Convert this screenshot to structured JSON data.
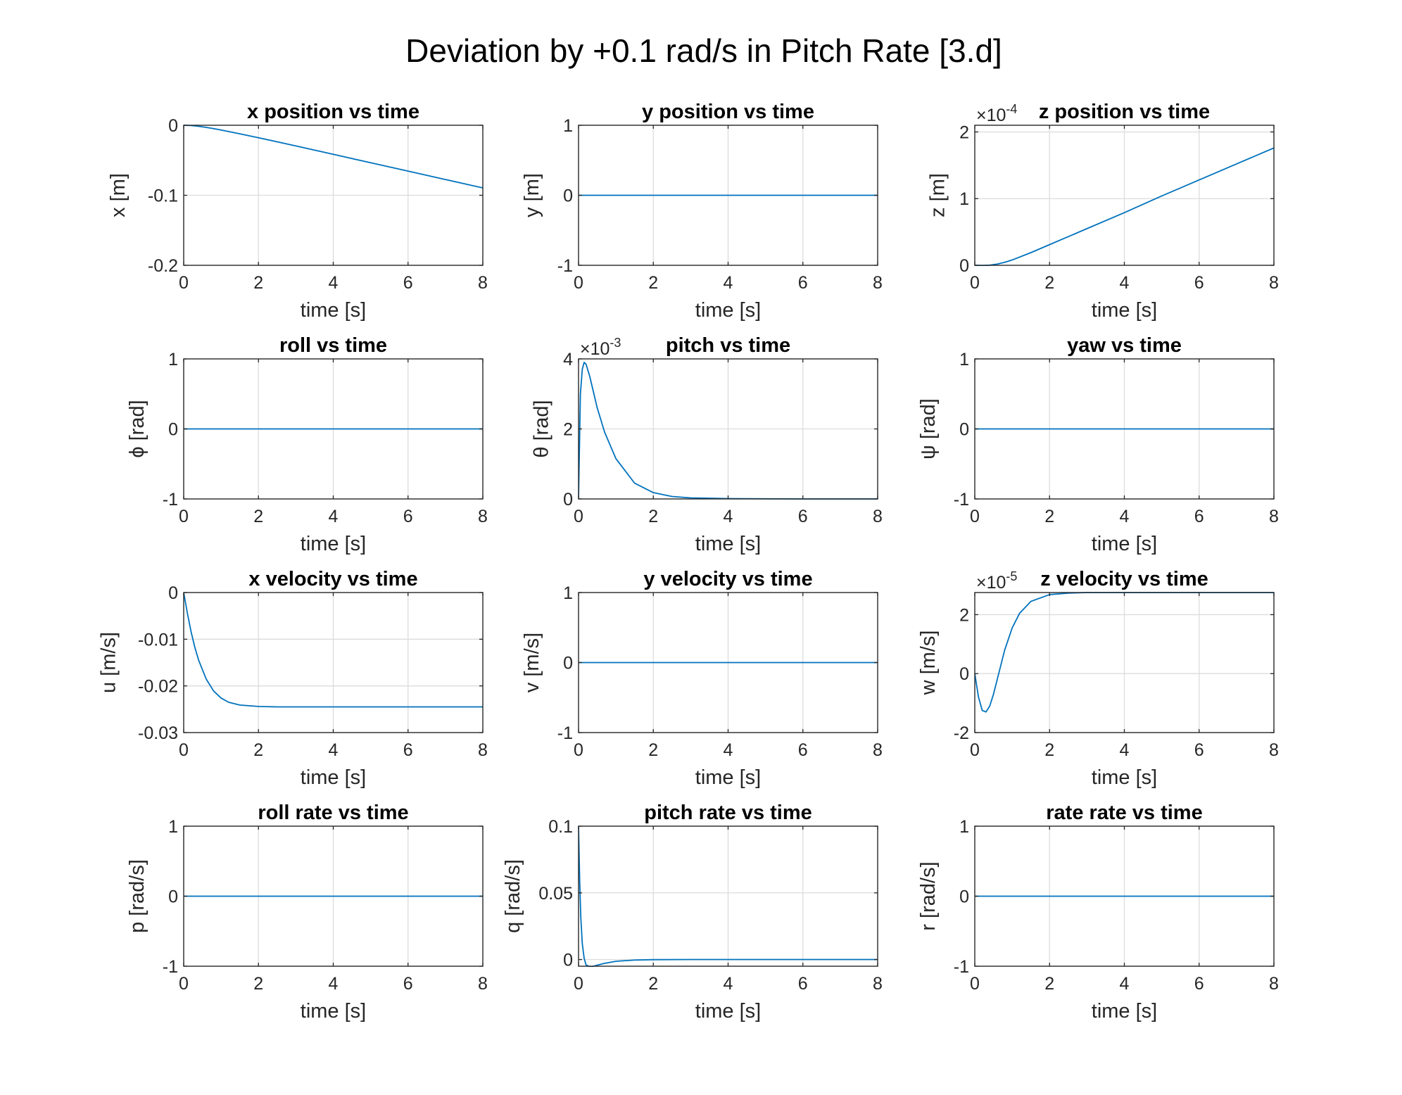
{
  "figure": {
    "title": "Deviation by +0.1 rad/s in Pitch Rate [3.d]",
    "line_color": "#0072BD",
    "grid_color": "#dcdcdc",
    "axis_color": "#262626"
  },
  "chart_data": [
    {
      "type": "line",
      "title": "x position vs time",
      "xlabel": "time [s]",
      "ylabel": "x [m]",
      "xlim": [
        0,
        8
      ],
      "ylim": [
        -0.2,
        0
      ],
      "xticks": [
        0,
        2,
        4,
        6,
        8
      ],
      "xtick_labels": [
        "0",
        "2",
        "4",
        "6",
        "8"
      ],
      "yticks": [
        -0.2,
        -0.1,
        0
      ],
      "ytick_labels": [
        "-0.2",
        "-0.1",
        "0"
      ],
      "grid": true,
      "series": [
        {
          "x": [
            0,
            0.2,
            0.4,
            0.6,
            0.8,
            1.0,
            1.5,
            2,
            3,
            4,
            5,
            6,
            7,
            8
          ],
          "y": [
            0,
            -0.0004,
            -0.0015,
            -0.003,
            -0.0048,
            -0.0068,
            -0.0122,
            -0.0178,
            -0.0295,
            -0.0415,
            -0.0535,
            -0.0655,
            -0.0775,
            -0.0895
          ]
        }
      ]
    },
    {
      "type": "line",
      "title": "y position vs time",
      "xlabel": "time [s]",
      "ylabel": "y [m]",
      "xlim": [
        0,
        8
      ],
      "ylim": [
        -1,
        1
      ],
      "xticks": [
        0,
        2,
        4,
        6,
        8
      ],
      "xtick_labels": [
        "0",
        "2",
        "4",
        "6",
        "8"
      ],
      "yticks": [
        -1,
        0,
        1
      ],
      "ytick_labels": [
        "-1",
        "0",
        "1"
      ],
      "grid": true,
      "series": [
        {
          "x": [
            0,
            8
          ],
          "y": [
            0,
            0
          ]
        }
      ]
    },
    {
      "type": "line",
      "title": "z position vs time",
      "xlabel": "time [s]",
      "ylabel": "z [m]",
      "exponent": "-4",
      "xlim": [
        0,
        8
      ],
      "ylim": [
        0,
        2.1
      ],
      "xticks": [
        0,
        2,
        4,
        6,
        8
      ],
      "xtick_labels": [
        "0",
        "2",
        "4",
        "6",
        "8"
      ],
      "yticks": [
        0,
        1,
        2
      ],
      "ytick_labels": [
        "0",
        "1",
        "2"
      ],
      "grid": true,
      "series": [
        {
          "x": [
            0,
            0.2,
            0.4,
            0.6,
            0.8,
            1.0,
            1.5,
            2,
            3,
            4,
            5,
            6,
            7,
            8
          ],
          "y": [
            0,
            -0.003,
            0.002,
            0.018,
            0.045,
            0.08,
            0.19,
            0.31,
            0.55,
            0.79,
            1.04,
            1.28,
            1.52,
            1.76
          ]
        }
      ]
    },
    {
      "type": "line",
      "title": "roll vs time",
      "xlabel": "time [s]",
      "ylabel": "ϕ [rad]",
      "xlim": [
        0,
        8
      ],
      "ylim": [
        -1,
        1
      ],
      "xticks": [
        0,
        2,
        4,
        6,
        8
      ],
      "xtick_labels": [
        "0",
        "2",
        "4",
        "6",
        "8"
      ],
      "yticks": [
        -1,
        0,
        1
      ],
      "ytick_labels": [
        "-1",
        "0",
        "1"
      ],
      "grid": true,
      "series": [
        {
          "x": [
            0,
            8
          ],
          "y": [
            0,
            0
          ]
        }
      ]
    },
    {
      "type": "line",
      "title": "pitch vs time",
      "xlabel": "time [s]",
      "ylabel": "θ [rad]",
      "exponent": "-3",
      "xlim": [
        0,
        8
      ],
      "ylim": [
        0,
        4
      ],
      "xticks": [
        0,
        2,
        4,
        6,
        8
      ],
      "xtick_labels": [
        "0",
        "2",
        "4",
        "6",
        "8"
      ],
      "yticks": [
        0,
        2,
        4
      ],
      "ytick_labels": [
        "0",
        "2",
        "4"
      ],
      "grid": true,
      "series": [
        {
          "x": [
            0,
            0.05,
            0.1,
            0.15,
            0.2,
            0.3,
            0.4,
            0.5,
            0.7,
            1.0,
            1.5,
            2,
            2.5,
            3,
            4,
            5,
            6,
            8
          ],
          "y": [
            0,
            3.0,
            3.7,
            3.9,
            3.85,
            3.5,
            3.05,
            2.6,
            1.9,
            1.15,
            0.45,
            0.18,
            0.07,
            0.03,
            0.01,
            0.005,
            0,
            0
          ]
        }
      ]
    },
    {
      "type": "line",
      "title": "yaw vs time",
      "xlabel": "time [s]",
      "ylabel": "ψ [rad]",
      "xlim": [
        0,
        8
      ],
      "ylim": [
        -1,
        1
      ],
      "xticks": [
        0,
        2,
        4,
        6,
        8
      ],
      "xtick_labels": [
        "0",
        "2",
        "4",
        "6",
        "8"
      ],
      "yticks": [
        -1,
        0,
        1
      ],
      "ytick_labels": [
        "-1",
        "0",
        "1"
      ],
      "grid": true,
      "series": [
        {
          "x": [
            0,
            8
          ],
          "y": [
            0,
            0
          ]
        }
      ]
    },
    {
      "type": "line",
      "title": "x velocity vs time",
      "xlabel": "time [s]",
      "ylabel": "u [m/s]",
      "xlim": [
        0,
        8
      ],
      "ylim": [
        -0.03,
        0
      ],
      "xticks": [
        0,
        2,
        4,
        6,
        8
      ],
      "xtick_labels": [
        "0",
        "2",
        "4",
        "6",
        "8"
      ],
      "yticks": [
        -0.03,
        -0.02,
        -0.01,
        0
      ],
      "ytick_labels": [
        "-0.03",
        "-0.02",
        "-0.01",
        "0"
      ],
      "grid": true,
      "series": [
        {
          "x": [
            0,
            0.1,
            0.2,
            0.3,
            0.4,
            0.6,
            0.8,
            1.0,
            1.2,
            1.5,
            2,
            2.5,
            3,
            4,
            5,
            6,
            8
          ],
          "y": [
            0,
            -0.0045,
            -0.0085,
            -0.0118,
            -0.0145,
            -0.0185,
            -0.0211,
            -0.0226,
            -0.0235,
            -0.0241,
            -0.0244,
            -0.0245,
            -0.0245,
            -0.0245,
            -0.0245,
            -0.0245,
            -0.0245
          ]
        }
      ]
    },
    {
      "type": "line",
      "title": "y velocity vs time",
      "xlabel": "time [s]",
      "ylabel": "v [m/s]",
      "xlim": [
        0,
        8
      ],
      "ylim": [
        -1,
        1
      ],
      "xticks": [
        0,
        2,
        4,
        6,
        8
      ],
      "xtick_labels": [
        "0",
        "2",
        "4",
        "6",
        "8"
      ],
      "yticks": [
        -1,
        0,
        1
      ],
      "ytick_labels": [
        "-1",
        "0",
        "1"
      ],
      "grid": true,
      "series": [
        {
          "x": [
            0,
            8
          ],
          "y": [
            0,
            0
          ]
        }
      ]
    },
    {
      "type": "line",
      "title": "z velocity vs time",
      "xlabel": "time [s]",
      "ylabel": "w [m/s]",
      "exponent": "-5",
      "xlim": [
        0,
        8
      ],
      "ylim": [
        -2,
        2.75
      ],
      "xticks": [
        0,
        2,
        4,
        6,
        8
      ],
      "xtick_labels": [
        "0",
        "2",
        "4",
        "6",
        "8"
      ],
      "yticks": [
        -2,
        0,
        2
      ],
      "ytick_labels": [
        "-2",
        "0",
        "2"
      ],
      "grid": true,
      "series": [
        {
          "x": [
            0,
            0.1,
            0.2,
            0.3,
            0.4,
            0.5,
            0.6,
            0.8,
            1.0,
            1.2,
            1.5,
            2,
            2.5,
            3,
            4,
            5,
            6,
            8
          ],
          "y": [
            0,
            -0.8,
            -1.25,
            -1.3,
            -1.1,
            -0.7,
            -0.2,
            0.8,
            1.55,
            2.05,
            2.45,
            2.68,
            2.73,
            2.75,
            2.75,
            2.75,
            2.75,
            2.75
          ]
        }
      ]
    },
    {
      "type": "line",
      "title": "roll rate vs time",
      "xlabel": "time [s]",
      "ylabel": "p [rad/s]",
      "xlim": [
        0,
        8
      ],
      "ylim": [
        -1,
        1
      ],
      "xticks": [
        0,
        2,
        4,
        6,
        8
      ],
      "xtick_labels": [
        "0",
        "2",
        "4",
        "6",
        "8"
      ],
      "yticks": [
        -1,
        0,
        1
      ],
      "ytick_labels": [
        "-1",
        "0",
        "1"
      ],
      "grid": true,
      "series": [
        {
          "x": [
            0,
            8
          ],
          "y": [
            0,
            0
          ]
        }
      ]
    },
    {
      "type": "line",
      "title": "pitch rate vs time",
      "xlabel": "time [s]",
      "ylabel": "q [rad/s]",
      "xlim": [
        0,
        8
      ],
      "ylim": [
        -0.005,
        0.1
      ],
      "xticks": [
        0,
        2,
        4,
        6,
        8
      ],
      "xtick_labels": [
        "0",
        "2",
        "4",
        "6",
        "8"
      ],
      "yticks": [
        0,
        0.05,
        0.1
      ],
      "ytick_labels": [
        "0",
        "0.05",
        "0.1"
      ],
      "grid": true,
      "series": [
        {
          "x": [
            0,
            0.03,
            0.06,
            0.1,
            0.15,
            0.2,
            0.3,
            0.4,
            0.5,
            0.7,
            1.0,
            1.5,
            2,
            3,
            4,
            5,
            6,
            8
          ],
          "y": [
            0.1,
            0.06,
            0.032,
            0.012,
            0.001,
            -0.004,
            -0.0055,
            -0.005,
            -0.0042,
            -0.0028,
            -0.0013,
            -0.0004,
            -0.0001,
            0,
            0,
            0,
            0,
            0
          ]
        }
      ]
    },
    {
      "type": "line",
      "title": "rate rate vs time",
      "xlabel": "time [s]",
      "ylabel": "r [rad/s]",
      "xlim": [
        0,
        8
      ],
      "ylim": [
        -1,
        1
      ],
      "xticks": [
        0,
        2,
        4,
        6,
        8
      ],
      "xtick_labels": [
        "0",
        "2",
        "4",
        "6",
        "8"
      ],
      "yticks": [
        -1,
        0,
        1
      ],
      "ytick_labels": [
        "-1",
        "0",
        "1"
      ],
      "grid": true,
      "series": [
        {
          "x": [
            0,
            8
          ],
          "y": [
            0,
            0
          ]
        }
      ]
    }
  ]
}
